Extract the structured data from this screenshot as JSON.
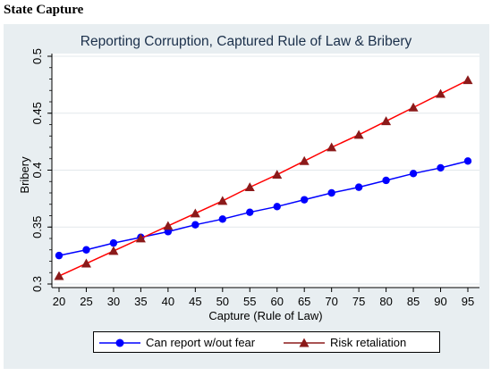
{
  "heading": "State Capture",
  "chart_data": {
    "type": "line",
    "title": "Reporting Corruption, Captured Rule of Law & Bribery",
    "xlabel": "Capture (Rule of Law)",
    "ylabel": "Bribery",
    "x": [
      20,
      25,
      30,
      35,
      40,
      45,
      50,
      55,
      60,
      65,
      70,
      75,
      80,
      85,
      90,
      95
    ],
    "xlim": [
      20,
      95
    ],
    "ylim": [
      0.3,
      0.5
    ],
    "yticks": [
      "0.3",
      "0.35",
      "0.4",
      "0.45",
      "0.5"
    ],
    "grid": "horizontal",
    "legend_position": "bottom",
    "series": [
      {
        "name": "Can report w/out fear",
        "color": "#0000ff",
        "marker": "circle",
        "values": [
          0.325,
          0.33,
          0.336,
          0.341,
          0.346,
          0.352,
          0.357,
          0.363,
          0.368,
          0.374,
          0.38,
          0.385,
          0.391,
          0.397,
          0.402,
          0.408
        ]
      },
      {
        "name": "Risk retaliation",
        "color": "#8b1a1a",
        "line_color": "#ff0000",
        "marker": "triangle",
        "values": [
          0.307,
          0.318,
          0.329,
          0.34,
          0.351,
          0.362,
          0.373,
          0.385,
          0.396,
          0.408,
          0.42,
          0.431,
          0.443,
          0.455,
          0.467,
          0.479
        ]
      }
    ]
  }
}
